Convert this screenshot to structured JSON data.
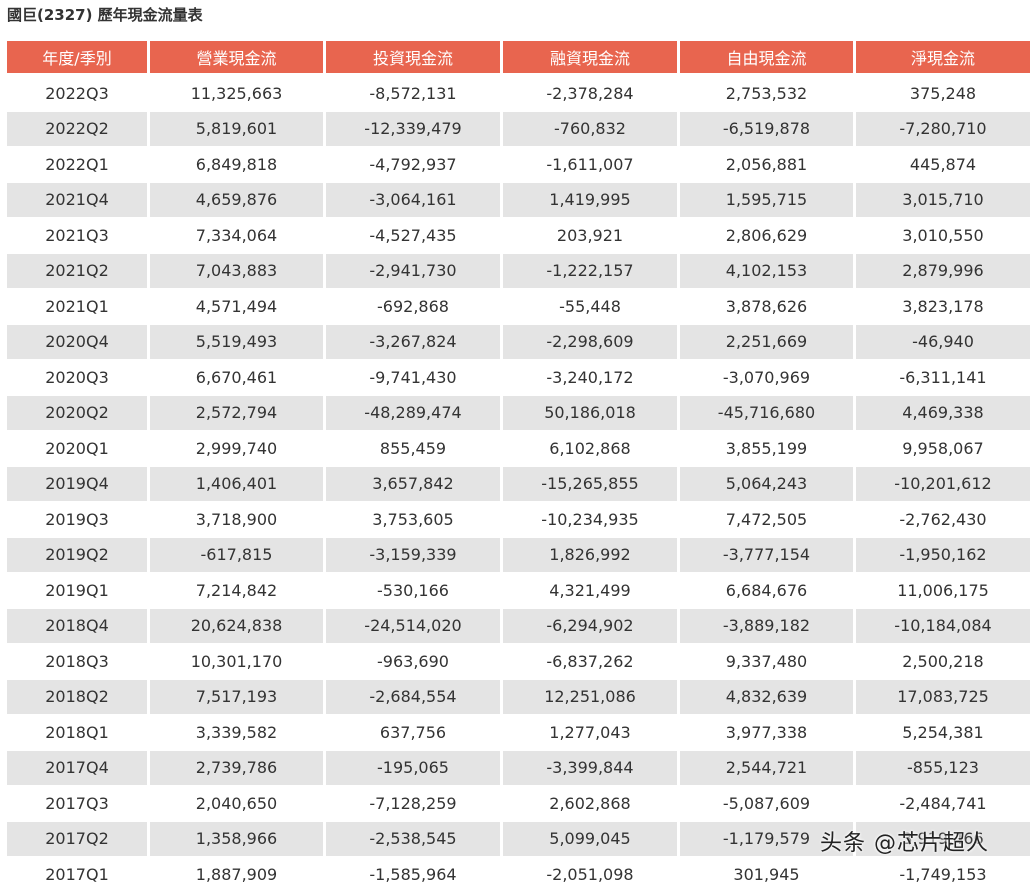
{
  "title": "國巨(2327) 歷年現金流量表",
  "headers": [
    "年度/季別",
    "營業現金流",
    "投資現金流",
    "融資現金流",
    "自由現金流",
    "淨現金流"
  ],
  "rows": [
    [
      "2022Q3",
      "11,325,663",
      "-8,572,131",
      "-2,378,284",
      "2,753,532",
      "375,248"
    ],
    [
      "2022Q2",
      "5,819,601",
      "-12,339,479",
      "-760,832",
      "-6,519,878",
      "-7,280,710"
    ],
    [
      "2022Q1",
      "6,849,818",
      "-4,792,937",
      "-1,611,007",
      "2,056,881",
      "445,874"
    ],
    [
      "2021Q4",
      "4,659,876",
      "-3,064,161",
      "1,419,995",
      "1,595,715",
      "3,015,710"
    ],
    [
      "2021Q3",
      "7,334,064",
      "-4,527,435",
      "203,921",
      "2,806,629",
      "3,010,550"
    ],
    [
      "2021Q2",
      "7,043,883",
      "-2,941,730",
      "-1,222,157",
      "4,102,153",
      "2,879,996"
    ],
    [
      "2021Q1",
      "4,571,494",
      "-692,868",
      "-55,448",
      "3,878,626",
      "3,823,178"
    ],
    [
      "2020Q4",
      "5,519,493",
      "-3,267,824",
      "-2,298,609",
      "2,251,669",
      "-46,940"
    ],
    [
      "2020Q3",
      "6,670,461",
      "-9,741,430",
      "-3,240,172",
      "-3,070,969",
      "-6,311,141"
    ],
    [
      "2020Q2",
      "2,572,794",
      "-48,289,474",
      "50,186,018",
      "-45,716,680",
      "4,469,338"
    ],
    [
      "2020Q1",
      "2,999,740",
      "855,459",
      "6,102,868",
      "3,855,199",
      "9,958,067"
    ],
    [
      "2019Q4",
      "1,406,401",
      "3,657,842",
      "-15,265,855",
      "5,064,243",
      "-10,201,612"
    ],
    [
      "2019Q3",
      "3,718,900",
      "3,753,605",
      "-10,234,935",
      "7,472,505",
      "-2,762,430"
    ],
    [
      "2019Q2",
      "-617,815",
      "-3,159,339",
      "1,826,992",
      "-3,777,154",
      "-1,950,162"
    ],
    [
      "2019Q1",
      "7,214,842",
      "-530,166",
      "4,321,499",
      "6,684,676",
      "11,006,175"
    ],
    [
      "2018Q4",
      "20,624,838",
      "-24,514,020",
      "-6,294,902",
      "-3,889,182",
      "-10,184,084"
    ],
    [
      "2018Q3",
      "10,301,170",
      "-963,690",
      "-6,837,262",
      "9,337,480",
      "2,500,218"
    ],
    [
      "2018Q2",
      "7,517,193",
      "-2,684,554",
      "12,251,086",
      "4,832,639",
      "17,083,725"
    ],
    [
      "2018Q1",
      "3,339,582",
      "637,756",
      "1,277,043",
      "3,977,338",
      "5,254,381"
    ],
    [
      "2017Q4",
      "2,739,786",
      "-195,065",
      "-3,399,844",
      "2,544,721",
      "-855,123"
    ],
    [
      "2017Q3",
      "2,040,650",
      "-7,128,259",
      "2,602,868",
      "-5,087,609",
      "-2,484,741"
    ],
    [
      "2017Q2",
      "1,358,966",
      "-2,538,545",
      "5,099,045",
      "-1,179,579",
      "3,919,466"
    ],
    [
      "2017Q1",
      "1,887,909",
      "-1,585,964",
      "-2,051,098",
      "301,945",
      "-1,749,153"
    ]
  ],
  "watermark": "头条 @芯片超人",
  "colors": {
    "header_bg": "#e8654f",
    "header_text": "#ffffff",
    "stripe": "#e4e4e4"
  }
}
